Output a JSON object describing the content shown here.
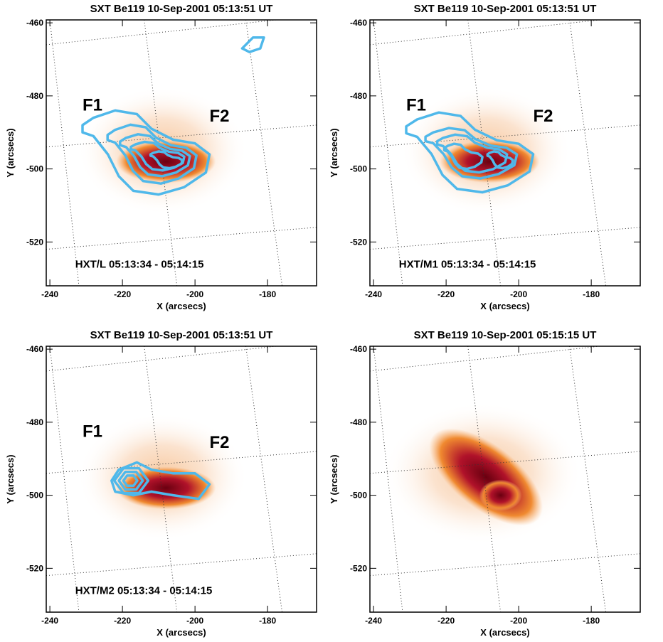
{
  "chart_data": [
    {
      "type": "image",
      "title": "SXT Be119 10-Sep-2001 05:13:51 UT",
      "xlabel": "X (arcsecs)",
      "ylabel": "Y (arcsecs)",
      "xlim": [
        -241,
        -166.5
      ],
      "ylim": [
        -532,
        -459.2
      ],
      "xticks": [
        -240,
        -220,
        -200,
        -180
      ],
      "yticks": [
        -460,
        -480,
        -500,
        -520
      ],
      "annotations": [
        "F1",
        "F2",
        "HXT/L  05:13:34 - 05:14:15"
      ]
    },
    {
      "type": "image",
      "title": "SXT Be119 10-Sep-2001 05:13:51 UT",
      "xlabel": "X (arcsecs)",
      "ylabel": "Y (arcsecs)",
      "xlim": [
        -241,
        -166.5
      ],
      "ylim": [
        -532,
        -459.2
      ],
      "xticks": [
        -240,
        -220,
        -200,
        -180
      ],
      "yticks": [
        -460,
        -480,
        -500,
        -520
      ],
      "annotations": [
        "F1",
        "F2",
        "HXT/M1  05:13:34 - 05:14:15"
      ]
    },
    {
      "type": "image",
      "title": "SXT Be119 10-Sep-2001 05:13:51 UT",
      "xlabel": "X (arcsecs)",
      "ylabel": "Y (arcsecs)",
      "xlim": [
        -241,
        -166.5
      ],
      "ylim": [
        -532,
        -459.2
      ],
      "xticks": [
        -240,
        -220,
        -200,
        -180
      ],
      "yticks": [
        -460,
        -480,
        -500,
        -520
      ],
      "annotations": [
        "F1",
        "F2",
        "HXT/M2  05:13:34 - 05:14:15"
      ]
    },
    {
      "type": "image",
      "title": "SXT Be119 10-Sep-2001 05:15:15 UT",
      "xlabel": "X (arcsecs)",
      "ylabel": "Y (arcsecs)",
      "xlim": [
        -241,
        -166.5
      ],
      "ylim": [
        -532,
        -459.2
      ],
      "xticks": [
        -240,
        -220,
        -200,
        -180
      ],
      "yticks": [
        -460,
        -480,
        -500,
        -520
      ]
    }
  ]
}
